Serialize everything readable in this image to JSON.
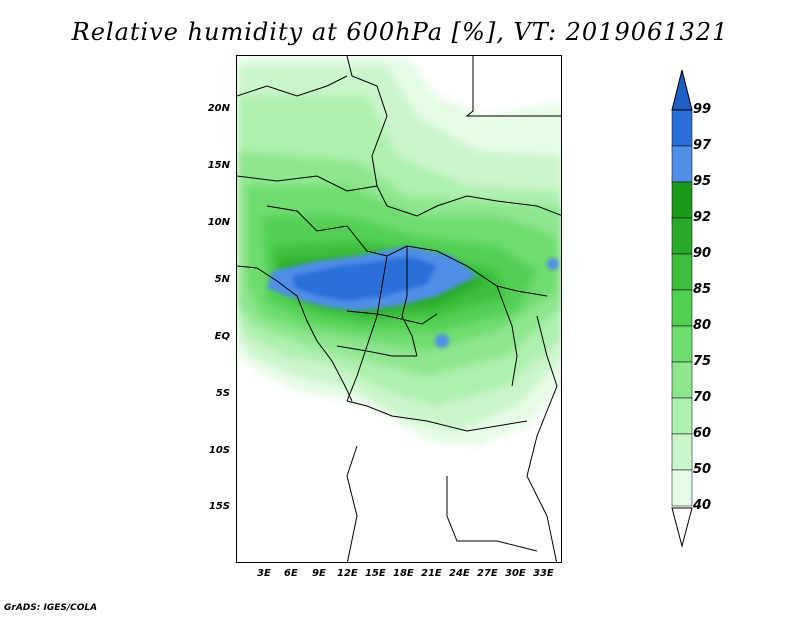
{
  "title": "Relative humidity at 600hPa [%], VT: 2019061321",
  "footer": "GrADS: IGES/COLA",
  "map": {
    "lat_ticks": [
      "20N",
      "15N",
      "10N",
      "5N",
      "EQ",
      "5S",
      "10S",
      "15S"
    ],
    "lon_ticks": [
      "3E",
      "6E",
      "9E",
      "12E",
      "15E",
      "18E",
      "21E",
      "24E",
      "27E",
      "30E",
      "33E"
    ]
  },
  "colorbar": {
    "labels": [
      "99",
      "97",
      "95",
      "92",
      "90",
      "85",
      "80",
      "75",
      "70",
      "60",
      "50",
      "40"
    ],
    "colors": [
      "#2a6fd8",
      "#4f8fe8",
      "#1a9a1a",
      "#2aaa2a",
      "#3cbe3c",
      "#52d052",
      "#6edc6e",
      "#8ee68e",
      "#aef0ae",
      "#cbf5cb",
      "#e6fbe6"
    ],
    "top_arrow_color": "#1f5fc4",
    "bottom_arrow_color": "#ffffff"
  }
}
